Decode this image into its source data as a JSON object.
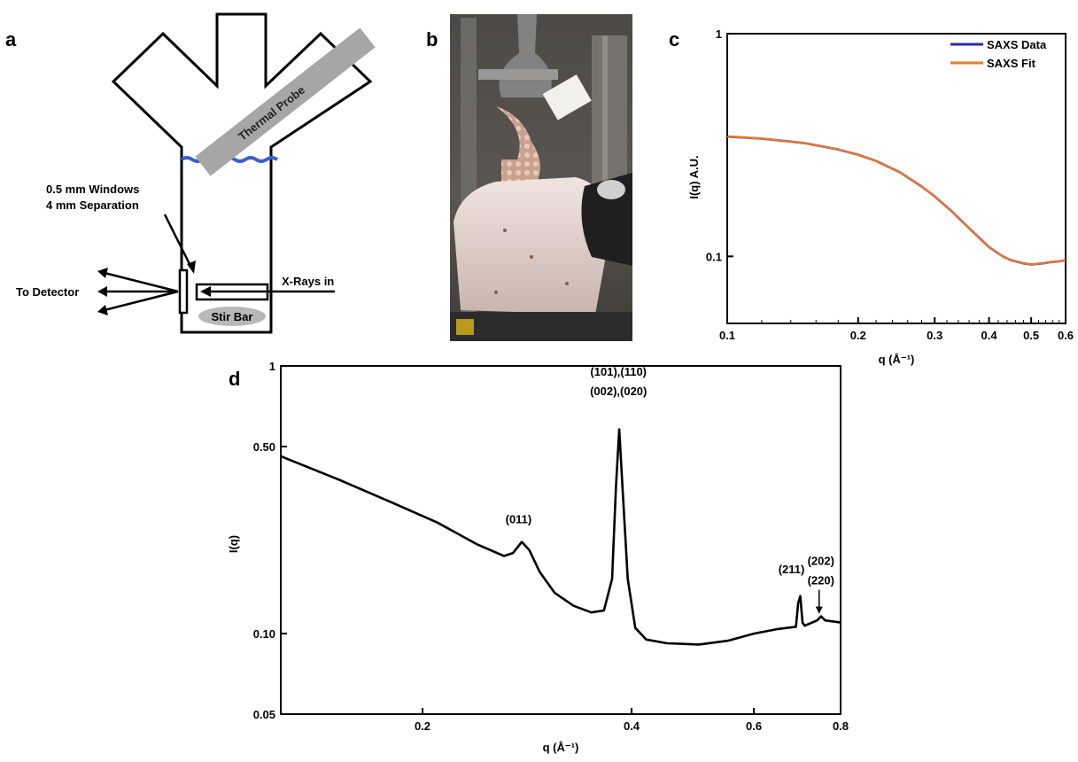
{
  "panel_labels": {
    "a": "a",
    "b": "b",
    "c": "c",
    "d": "d"
  },
  "schematic": {
    "probe_label": "Thermal Probe",
    "windows_line1": "0.5 mm Windows",
    "windows_line2": "4 mm Separation",
    "to_detector": "To Detector",
    "xrays_in": "X-Rays in",
    "stir_bar": "Stir Bar",
    "liquid_color": "#3a5fd0"
  },
  "photo": {
    "description_icon": "photo-setup"
  },
  "chart_data": [
    {
      "panel": "c",
      "type": "line",
      "xscale": "log",
      "yscale": "log",
      "xlim": [
        0.1,
        0.6
      ],
      "ylim": [
        0.05,
        1
      ],
      "xlabel": "q (Å⁻¹)",
      "ylabel": "I(q) A.U.",
      "xticks": [
        0.1,
        0.2,
        0.3,
        0.4,
        0.5,
        0.6
      ],
      "xtick_labels": [
        "0.1",
        "0.2",
        "0.3",
        "0.4",
        "0.5",
        "0.6"
      ],
      "yticks": [
        0.1,
        1
      ],
      "ytick_labels": [
        "0.1",
        "1"
      ],
      "legend_position": "top-right",
      "series": [
        {
          "name": "SAXS Data",
          "color": "#2a2ab8",
          "x": [
            0.1,
            0.12,
            0.15,
            0.18,
            0.2,
            0.22,
            0.25,
            0.28,
            0.3,
            0.33,
            0.35,
            0.38,
            0.4,
            0.43,
            0.45,
            0.48,
            0.5,
            0.53,
            0.55,
            0.58,
            0.6
          ],
          "y": [
            0.345,
            0.338,
            0.323,
            0.302,
            0.286,
            0.268,
            0.238,
            0.206,
            0.186,
            0.158,
            0.141,
            0.121,
            0.11,
            0.1,
            0.096,
            0.093,
            0.092,
            0.093,
            0.094,
            0.095,
            0.096
          ]
        },
        {
          "name": "SAXS Fit",
          "color": "#ee7722",
          "x": [
            0.1,
            0.12,
            0.15,
            0.18,
            0.2,
            0.22,
            0.25,
            0.28,
            0.3,
            0.33,
            0.35,
            0.38,
            0.4,
            0.43,
            0.45,
            0.48,
            0.5,
            0.53,
            0.55,
            0.58,
            0.6
          ],
          "y": [
            0.345,
            0.338,
            0.323,
            0.302,
            0.286,
            0.268,
            0.238,
            0.206,
            0.186,
            0.158,
            0.141,
            0.121,
            0.11,
            0.1,
            0.096,
            0.093,
            0.092,
            0.093,
            0.094,
            0.095,
            0.096
          ]
        }
      ]
    },
    {
      "panel": "d",
      "type": "line",
      "xscale": "log",
      "yscale": "log",
      "xlim": [
        0.125,
        0.8
      ],
      "ylim": [
        0.05,
        1
      ],
      "xlabel": "q (Å⁻¹)",
      "ylabel": "I(q)",
      "xticks": [
        0.2,
        0.4,
        0.6,
        0.8
      ],
      "xtick_labels": [
        "0.2",
        "0.4",
        "0.6",
        "0.8"
      ],
      "yticks": [
        0.05,
        0.1,
        0.5,
        1
      ],
      "ytick_labels": [
        "0.05",
        "0.10",
        "0.50",
        "1"
      ],
      "series": [
        {
          "name": "",
          "color": "#000000",
          "x": [
            0.125,
            0.15,
            0.18,
            0.21,
            0.24,
            0.262,
            0.27,
            0.278,
            0.285,
            0.295,
            0.31,
            0.33,
            0.35,
            0.365,
            0.375,
            0.38,
            0.384,
            0.388,
            0.395,
            0.405,
            0.42,
            0.45,
            0.5,
            0.55,
            0.6,
            0.65,
            0.69,
            0.695,
            0.7,
            0.705,
            0.71,
            0.74,
            0.75,
            0.76,
            0.8
          ],
          "y": [
            0.46,
            0.38,
            0.31,
            0.26,
            0.215,
            0.195,
            0.2,
            0.22,
            0.205,
            0.17,
            0.142,
            0.127,
            0.12,
            0.122,
            0.16,
            0.36,
            0.58,
            0.36,
            0.16,
            0.105,
            0.095,
            0.092,
            0.091,
            0.094,
            0.1,
            0.104,
            0.106,
            0.13,
            0.138,
            0.11,
            0.107,
            0.112,
            0.116,
            0.112,
            0.11
          ]
        }
      ],
      "annotations": [
        {
          "text": "(011)",
          "x": 0.275,
          "y": 0.215
        },
        {
          "text": "(101),(110)",
          "x": 0.383,
          "y": 0.6
        },
        {
          "text": "(002),(020)",
          "x": 0.383,
          "y": 0.6
        },
        {
          "text": "(211)",
          "x": 0.7,
          "y": 0.138
        },
        {
          "text": "(202)",
          "x": 0.745,
          "y": 0.116
        },
        {
          "text": "(220)",
          "x": 0.745,
          "y": 0.116
        }
      ]
    }
  ]
}
